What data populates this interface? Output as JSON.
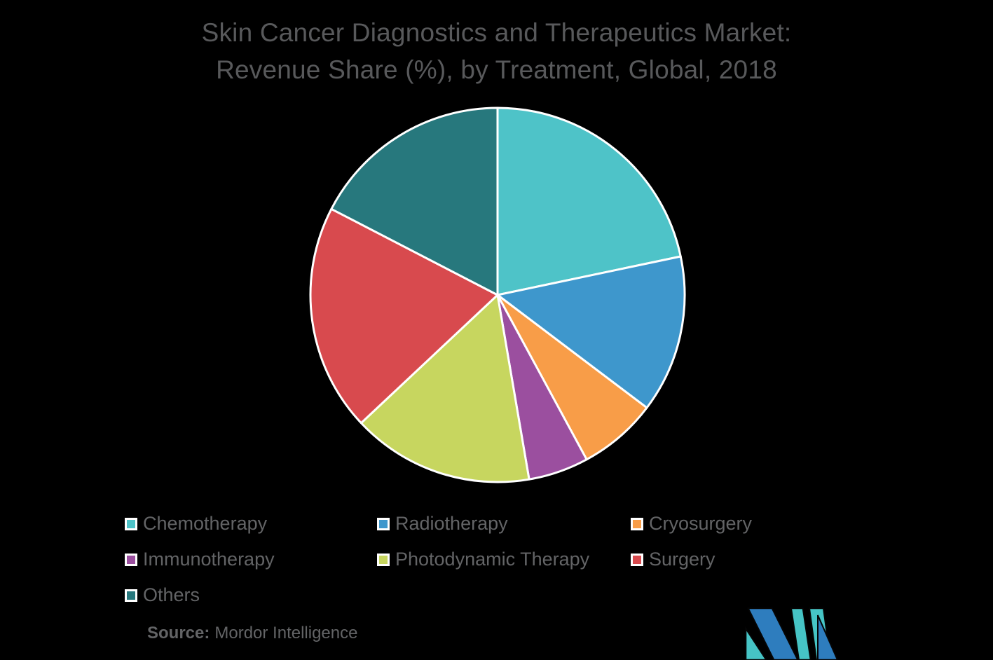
{
  "page": {
    "background": "#000000",
    "title_color": "#58595B",
    "text_color": "#636466"
  },
  "title": {
    "line1": "Skin Cancer Diagnostics and Therapeutics Market:",
    "line2": "Revenue Share (%), by Treatment, Global, 2018"
  },
  "chart_data": {
    "type": "pie",
    "title": "Skin Cancer Diagnostics and Therapeutics Market: Revenue Share (%), by Treatment, Global, 2018",
    "unit": "%",
    "start_angle_deg": 0,
    "direction": "clockwise",
    "legend_position": "bottom",
    "slice_border_color": "#FFFFFF",
    "series": [
      {
        "label": "Chemotherapy",
        "value": 21.7,
        "color": "#4EC3C8"
      },
      {
        "label": "Radiotherapy",
        "value": 13.6,
        "color": "#3E97CC"
      },
      {
        "label": "Cryosurgery",
        "value": 6.8,
        "color": "#F89D48"
      },
      {
        "label": "Immunotherapy",
        "value": 5.2,
        "color": "#9B4F9F"
      },
      {
        "label": "Photodynamic Therapy",
        "value": 15.7,
        "color": "#C7D65F"
      },
      {
        "label": "Surgery",
        "value": 19.6,
        "color": "#D84A4E"
      },
      {
        "label": "Others",
        "value": 17.4,
        "color": "#27787D"
      }
    ]
  },
  "source": {
    "label": "Source:",
    "text": "Mordor Intelligence"
  },
  "logo": {
    "name": "mordor-intelligence-logo",
    "colors": {
      "blue": "#2E7DBE",
      "teal": "#46C4C5"
    }
  }
}
